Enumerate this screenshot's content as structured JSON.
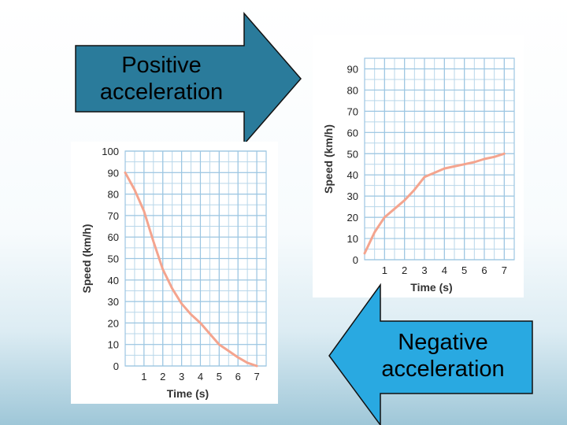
{
  "arrows": {
    "positive_label": "Positive acceleration",
    "negative_label": "Negative acceleration",
    "positive_color": "#2a7b9b",
    "negative_color": "#29a9e1"
  },
  "chart_data": [
    {
      "type": "line",
      "title": "",
      "xlabel": "Time (s)",
      "ylabel": "Speed (km/h)",
      "xlim": [
        0,
        7.5
      ],
      "ylim": [
        0,
        100
      ],
      "xticks": [
        1,
        2,
        3,
        4,
        5,
        6,
        7
      ],
      "yticks": [
        0,
        10,
        20,
        30,
        40,
        50,
        60,
        70,
        80,
        90,
        100
      ],
      "grid": true,
      "series": [
        {
          "color": "#f4a48e",
          "x": [
            0,
            0.5,
            1,
            1.5,
            2,
            2.5,
            3,
            3.5,
            4,
            4.5,
            5,
            5.5,
            6,
            6.5,
            7
          ],
          "y": [
            90,
            82,
            72,
            58,
            45,
            36,
            29,
            24,
            20,
            15,
            10,
            7,
            4,
            1.5,
            0
          ]
        }
      ]
    },
    {
      "type": "line",
      "title": "",
      "xlabel": "Time (s)",
      "ylabel": "Speed (km/h)",
      "xlim": [
        0,
        7.5
      ],
      "ylim": [
        0,
        95
      ],
      "xticks": [
        1,
        2,
        3,
        4,
        5,
        6,
        7
      ],
      "yticks": [
        0,
        10,
        20,
        30,
        40,
        50,
        60,
        70,
        80,
        90
      ],
      "grid": true,
      "series": [
        {
          "color": "#f4a48e",
          "x": [
            0,
            0.5,
            1,
            1.5,
            2,
            2.5,
            3,
            3.5,
            4,
            4.5,
            5,
            5.5,
            6,
            6.5,
            7
          ],
          "y": [
            3,
            13,
            20,
            24,
            28,
            33,
            39,
            41,
            43,
            44,
            45,
            46,
            47.5,
            48.5,
            50
          ]
        }
      ]
    }
  ]
}
